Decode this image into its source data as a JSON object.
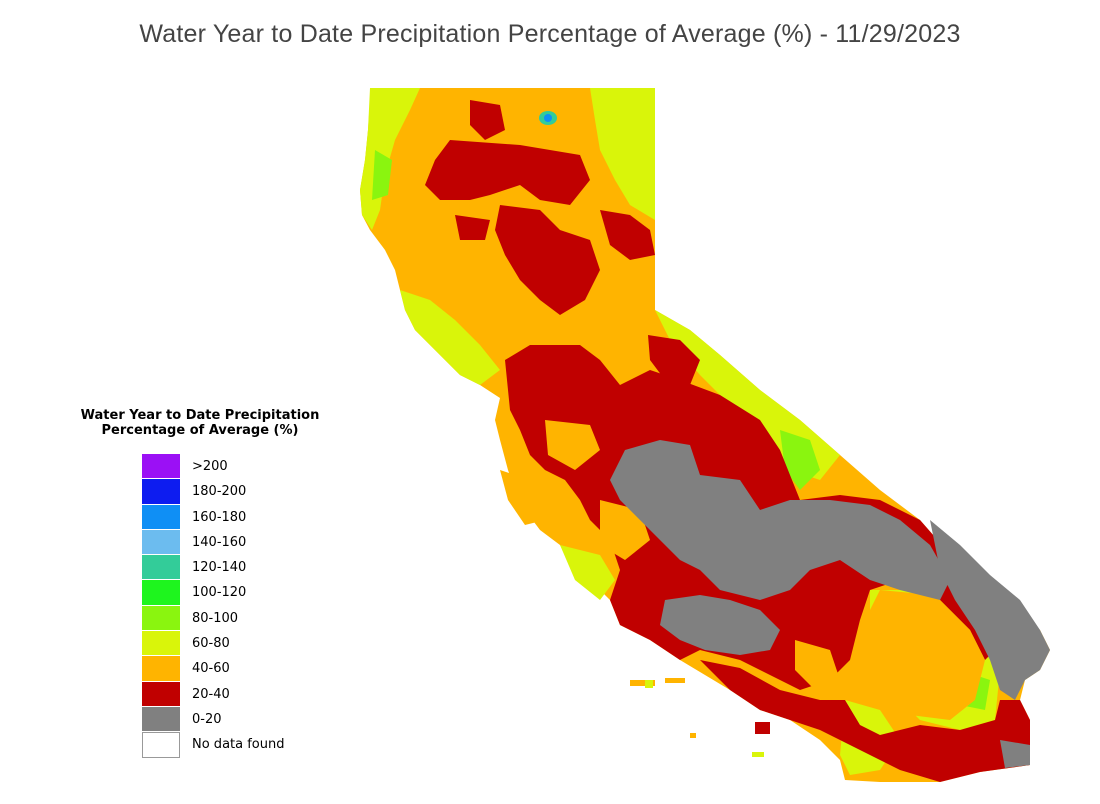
{
  "title": "Water Year to Date Precipitation Percentage of Average (%) - 11/29/2023",
  "legend": {
    "title_line1": "Water Year to Date Precipitation",
    "title_line2": "Percentage of Average (%)",
    "items": [
      {
        "label": ">200",
        "color": "#9b10f5"
      },
      {
        "label": "180-200",
        "color": "#0d1cf0"
      },
      {
        "label": "160-180",
        "color": "#0f8ff5"
      },
      {
        "label": "140-160",
        "color": "#6cbcef"
      },
      {
        "label": "120-140",
        "color": "#33cc99"
      },
      {
        "label": "100-120",
        "color": "#1ef51e"
      },
      {
        "label": "80-100",
        "color": "#8af50f"
      },
      {
        "label": "60-80",
        "color": "#d9f50a"
      },
      {
        "label": "40-60",
        "color": "#ffb400"
      },
      {
        "label": "20-40",
        "color": "#c00000"
      },
      {
        "label": "0-20",
        "color": "#808080"
      },
      {
        "label": "No data found",
        "color": "#ffffff"
      }
    ]
  },
  "map": {
    "region": "California",
    "colors": {
      "orange": "#ffb400",
      "red": "#c00000",
      "gray": "#808080",
      "yellow": "#d9f50a",
      "green": "#8af50f",
      "bright_green": "#1ef51e",
      "blue": "#0f8ff5"
    }
  }
}
